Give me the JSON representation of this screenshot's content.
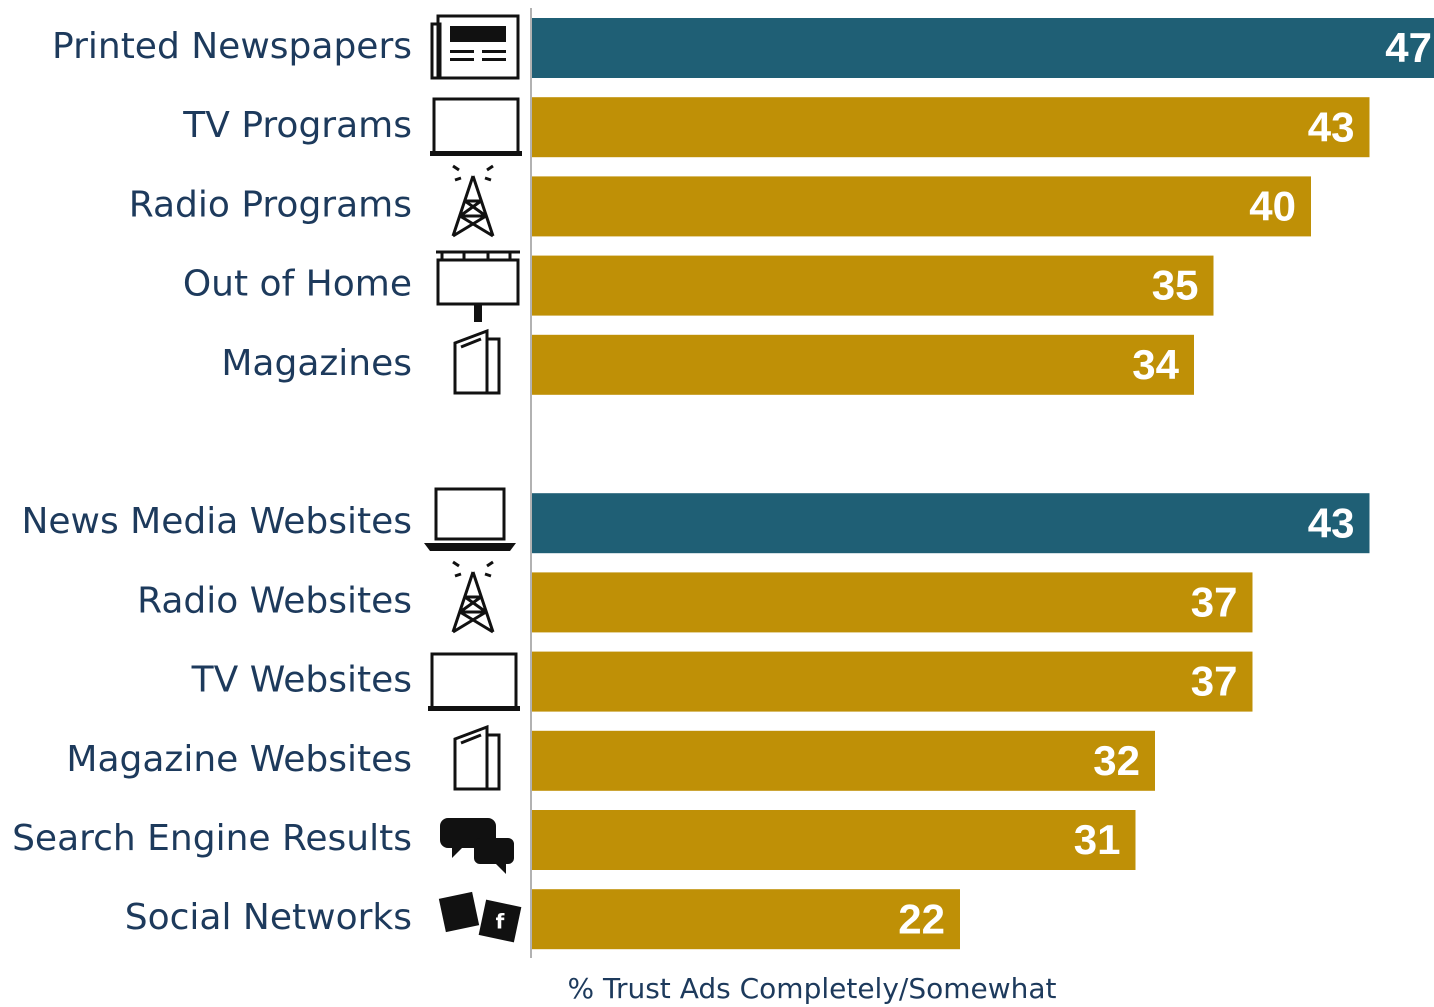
{
  "chart_data": {
    "type": "barh",
    "categories": [
      "Printed Newspapers",
      "TV Programs",
      "Radio Programs",
      "Out of Home",
      "Magazines",
      null,
      "News Media Websites",
      "Radio Websites",
      "TV Websites",
      "Magazine Websites",
      "Search Engine Results",
      "Social Networks"
    ],
    "values": [
      47,
      43,
      40,
      35,
      34,
      null,
      43,
      37,
      37,
      32,
      31,
      22
    ],
    "colors": [
      "#1f5f75",
      "#bf9006",
      "#bf9006",
      "#bf9006",
      "#bf9006",
      null,
      "#1f5f75",
      "#bf9006",
      "#bf9006",
      "#bf9006",
      "#bf9006",
      "#bf9006"
    ],
    "xlabel": "% Trust Ads Completely/Somewhat"
  }
}
